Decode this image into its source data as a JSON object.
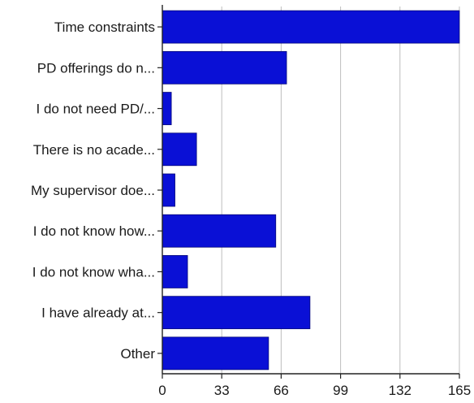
{
  "chart_data": {
    "type": "bar",
    "orientation": "horizontal",
    "categories": [
      "Time constraints",
      "PD offerings do n...",
      "I do not need PD/...",
      "There is no acade...",
      "My supervisor doe...",
      "I do not know how...",
      "I do not know wha...",
      "I have already at...",
      "Other"
    ],
    "values": [
      165,
      69,
      5,
      19,
      7,
      63,
      14,
      82,
      59
    ],
    "xlim": [
      0,
      165
    ],
    "xticks": [
      "0",
      "33",
      "66",
      "99",
      "132",
      "165"
    ],
    "grid": true,
    "legend": "none",
    "title": "",
    "xlabel": "",
    "ylabel": "",
    "colors": {
      "bar": "#0a10d6",
      "bar_edge": "#05087a",
      "grid": "#bdbdbd",
      "axis": "#222222",
      "text": "#1a1a1a"
    }
  }
}
